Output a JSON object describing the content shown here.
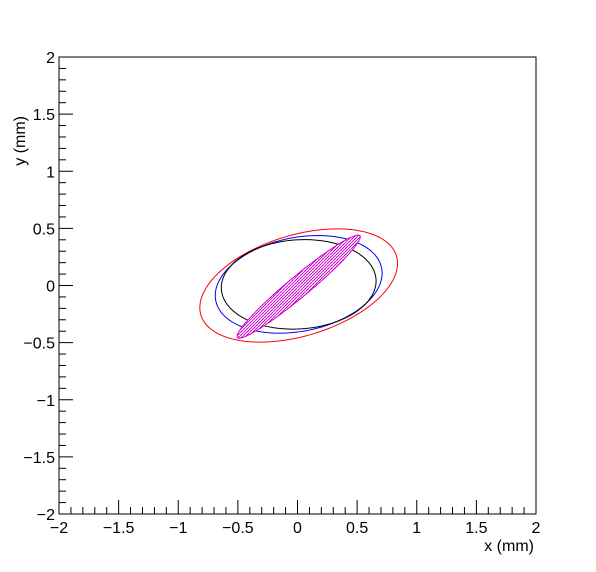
{
  "chart_data": {
    "type": "ellipse",
    "x_label": "x (mm)",
    "y_label": "y (mm)",
    "xlim": [
      -2,
      2
    ],
    "ylim": [
      -2,
      2
    ],
    "xticks": [
      {
        "value": -2,
        "label": "−2"
      },
      {
        "value": -1.5,
        "label": "−1.5"
      },
      {
        "value": -1,
        "label": "−1"
      },
      {
        "value": -0.5,
        "label": "−0.5"
      },
      0,
      0.5,
      1,
      1.5,
      2
    ],
    "yticks": [
      {
        "value": -2,
        "label": "−2"
      },
      {
        "value": -1.5,
        "label": "−1.5"
      },
      {
        "value": -1,
        "label": "−1"
      },
      {
        "value": -0.5,
        "label": "−0.5"
      },
      0,
      0.5,
      1,
      1.5,
      2
    ],
    "series": [
      {
        "color": "#ff0000",
        "cx": 0.01,
        "cy": 0.0,
        "rx": 0.86,
        "ry": 0.44,
        "angle": 18,
        "fill": false
      },
      {
        "color": "#0000ff",
        "cx": 0.01,
        "cy": 0.01,
        "rx": 0.71,
        "ry": 0.41,
        "angle": 12,
        "fill": false
      },
      {
        "color": "#000000",
        "cx": 0.01,
        "cy": 0.01,
        "rx": 0.65,
        "ry": 0.39,
        "angle": 4,
        "fill": false
      },
      {
        "color": "#cc00cc",
        "cx": 0.01,
        "cy": -0.01,
        "rx": 0.68,
        "ry": 0.09,
        "angle": 41,
        "fill": true
      }
    ]
  }
}
